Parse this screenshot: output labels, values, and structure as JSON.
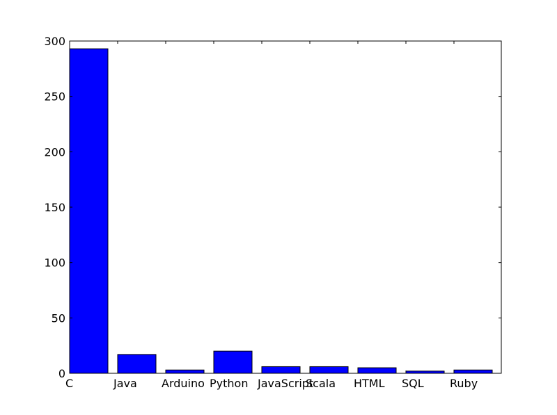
{
  "chart_data": {
    "type": "bar",
    "categories": [
      "C",
      "Java",
      "Arduino",
      "Python",
      "JavaScript",
      "Scala",
      "HTML",
      "SQL",
      "Ruby"
    ],
    "values": [
      293,
      17,
      3,
      20,
      6,
      6,
      5,
      2,
      3
    ],
    "title": "",
    "xlabel": "",
    "ylabel": "",
    "ylim": [
      0,
      300
    ],
    "yticks": [
      0,
      50,
      100,
      150,
      200,
      250,
      300
    ],
    "grid": false,
    "bar_color": "#0000ff",
    "edge_color": "#000000"
  }
}
